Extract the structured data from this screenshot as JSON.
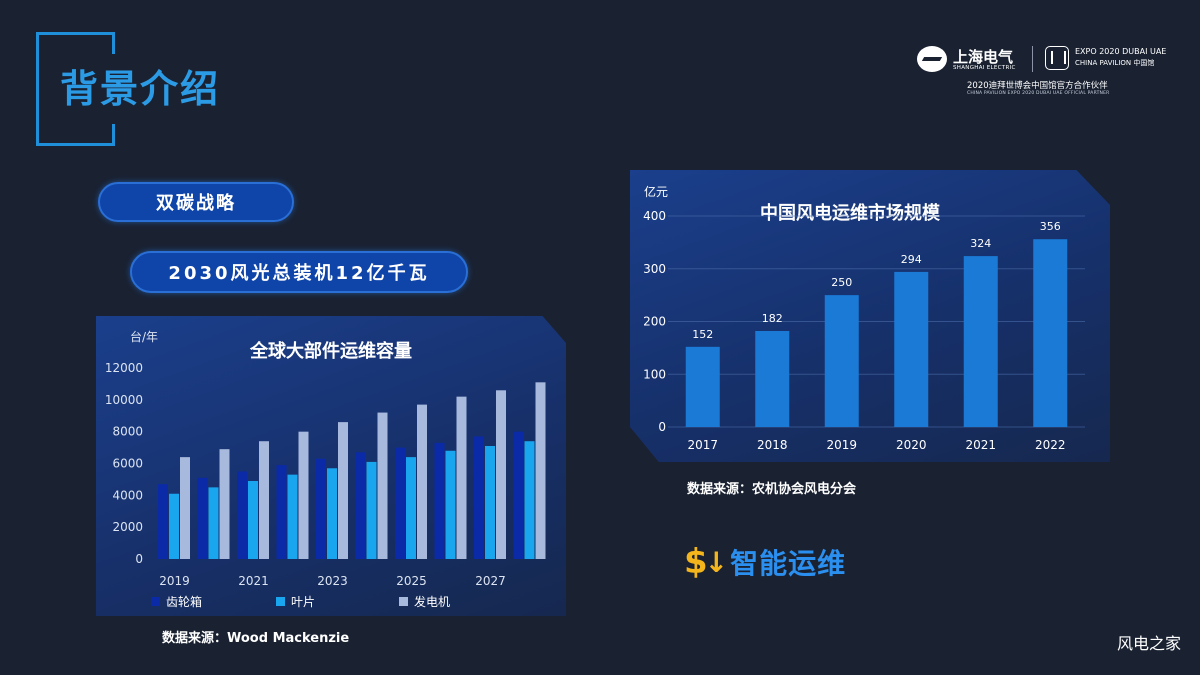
{
  "header": {
    "title": "背景介绍"
  },
  "logo": {
    "brand_name": "上海电气",
    "brand_sub": "SHANGHAI ELECTRIC",
    "expo_line1": "EXPO 2020 DUBAI UAE",
    "expo_line2": "CHINA PAVILION 中国馆",
    "partner_cn": "2020迪拜世博会中国馆官方合作伙伴",
    "partner_en": "CHINA PAVILION EXPO 2020 DUBAI UAE OFFICIAL PARTNER"
  },
  "pills": {
    "strategy": "双碳战略",
    "target": "2030风光总装机12亿千瓦"
  },
  "sources": {
    "left": "数据来源：Wood Mackenzie",
    "right": "数据来源：农机协会风电分会"
  },
  "callout": {
    "symbol": "$",
    "label": "智能运维"
  },
  "watermark": "风电之家",
  "colors": {
    "accent": "#2c9be6",
    "gold": "#f3b51b",
    "pill": "#0f44a8",
    "bar_right": "#1a7ad6"
  },
  "chart_data": [
    {
      "type": "bar",
      "title": "全球大部件运维容量",
      "ylabel": "台/年",
      "ylim": [
        0,
        12000
      ],
      "yticks": [
        0,
        2000,
        4000,
        6000,
        8000,
        10000,
        12000
      ],
      "categories": [
        "2019",
        "2020",
        "2021",
        "2022",
        "2023",
        "2024",
        "2025",
        "2026",
        "2027",
        "2028"
      ],
      "xtick_labels": [
        "2019",
        "2021",
        "2023",
        "2025",
        "2027"
      ],
      "legend_position": "bottom",
      "series": [
        {
          "name": "齿轮箱",
          "color": "#0b2aa8",
          "values": [
            4700,
            5100,
            5500,
            5900,
            6300,
            6700,
            7000,
            7300,
            7700,
            8000
          ]
        },
        {
          "name": "叶片",
          "color": "#1aa6ef",
          "values": [
            4100,
            4500,
            4900,
            5300,
            5700,
            6100,
            6400,
            6800,
            7100,
            7400
          ]
        },
        {
          "name": "发电机",
          "color": "#a7b9dc",
          "values": [
            6400,
            6900,
            7400,
            8000,
            8600,
            9200,
            9700,
            10200,
            10600,
            11100
          ]
        }
      ]
    },
    {
      "type": "bar",
      "title": "中国风电运维市场规模",
      "ylabel": "亿元",
      "ylim": [
        0,
        400
      ],
      "yticks": [
        0,
        100,
        200,
        300,
        400
      ],
      "categories": [
        "2017",
        "2018",
        "2019",
        "2020",
        "2021",
        "2022"
      ],
      "values": [
        152,
        182,
        250,
        294,
        324,
        356
      ],
      "data_labels": [
        "152",
        "182",
        "250",
        "294",
        "324",
        "356"
      ],
      "grid": true
    }
  ]
}
